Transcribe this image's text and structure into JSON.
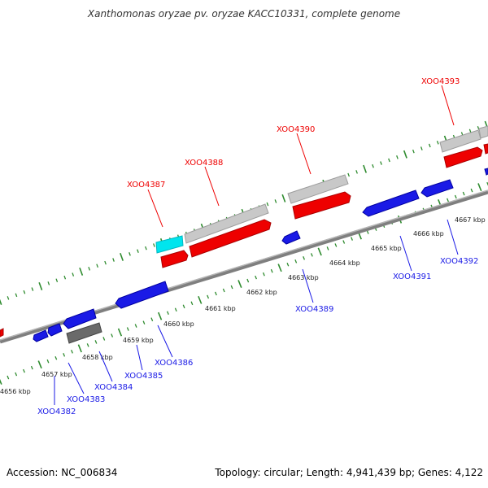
{
  "title": "Xanthomonas oryzae pv. oryzae KACC10331, complete genome",
  "accession": "Accession: NC_006834",
  "summary": "Topology: circular; Length: 4,941,439 bp; Genes: 4,122",
  "colors": {
    "forward_gene": "#ee0000",
    "reverse_gene": "#1a1ae6",
    "other_gene": "#c8c8c8",
    "highlight_gene": "#00e5ee",
    "ticks": "#2e8b2e",
    "backbone": "#8c8c8c"
  },
  "kbp_labels": [
    "4656 kbp",
    "4657 kbp",
    "4658 kbp",
    "4659 kbp",
    "4660 kbp",
    "4661 kbp",
    "4662 kbp",
    "4663 kbp",
    "4664 kbp",
    "4665 kbp",
    "4666 kbp",
    "4667 kbp"
  ],
  "forward_labels": [
    "XOO4387",
    "XOO4388",
    "XOO4390",
    "XOO4393"
  ],
  "reverse_labels": [
    "XOO4382",
    "XOO4383",
    "XOO4384",
    "XOO4385",
    "XOO4386",
    "XOO4389",
    "XOO4391",
    "XOO4392"
  ]
}
